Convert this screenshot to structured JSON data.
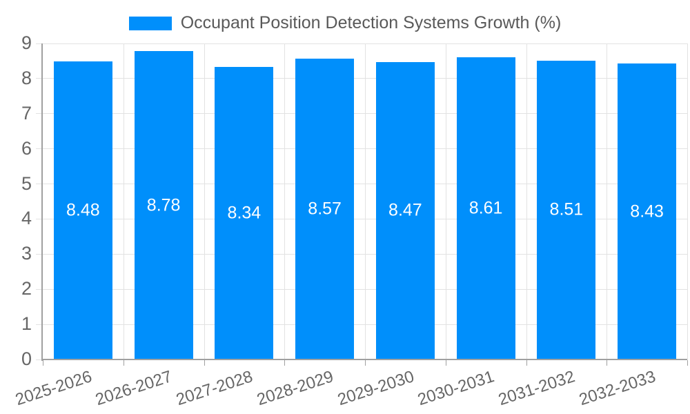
{
  "chart_data": {
    "type": "bar",
    "title": "Occupant Position Detection Systems Growth (%)",
    "categories": [
      "2025-2026",
      "2026-2027",
      "2027-2028",
      "2028-2029",
      "2029-2030",
      "2030-2031",
      "2031-2032",
      "2032-2033"
    ],
    "values": [
      8.48,
      8.78,
      8.34,
      8.57,
      8.47,
      8.61,
      8.51,
      8.43
    ],
    "value_labels": [
      "8.48",
      "8.78",
      "8.34",
      "8.57",
      "8.47",
      "8.61",
      "8.51",
      "8.43"
    ],
    "xlabel": "",
    "ylabel": "",
    "ylim": [
      0,
      9
    ],
    "ytick_step": 1,
    "yticks": [
      "0",
      "1",
      "2",
      "3",
      "4",
      "5",
      "6",
      "7",
      "8",
      "9"
    ],
    "grid": "on",
    "legend_position": "top-center",
    "bar_label_position": "center-inside",
    "colors": {
      "bar": "#008FFB",
      "grid": "#e2e2e2",
      "axis": "#a0a0a0",
      "tick_text": "#666666",
      "title_text": "#595959",
      "bar_label_text": "#ffffff",
      "background": "#ffffff"
    }
  }
}
